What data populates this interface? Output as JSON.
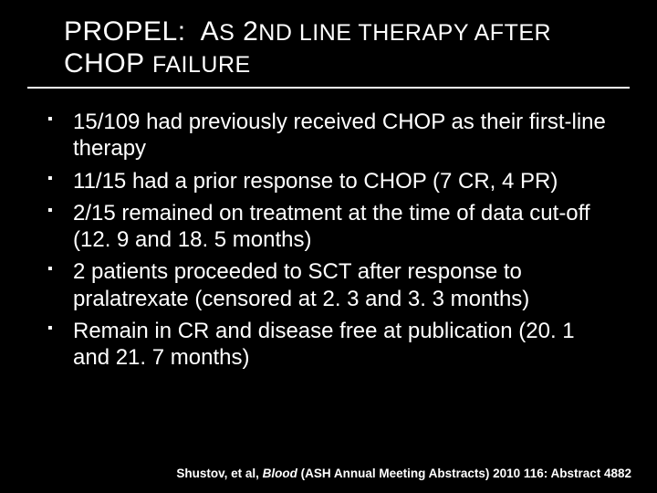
{
  "title_html": "PROPEL:&nbsp; A<span style='font-size:25px'>S</span> 2<span style='font-size:25px'>ND LINE THERAPY AFTER</span> CHOP <span style='font-size:25px'>FAILURE</span>",
  "bullets": [
    "15/109  had previously received CHOP as their first-line therapy",
    "11/15 had a prior response to CHOP (7 CR, 4 PR)",
    "2/15 remained on treatment at the time of data cut-off (12. 9 and 18. 5 months)",
    "2 patients proceeded to SCT after response to pralatrexate (censored at 2. 3 and 3. 3 months)",
    "Remain in CR and disease free at publication (20. 1 and 21. 7 months)"
  ],
  "citation_prefix": "Shustov, et al, ",
  "citation_journal": "Blood",
  "citation_suffix": " (ASH Annual Meeting Abstracts) 2010 116: Abstract 4882",
  "colors": {
    "background": "#000000",
    "text": "#ffffff",
    "rule": "#ffffff"
  }
}
